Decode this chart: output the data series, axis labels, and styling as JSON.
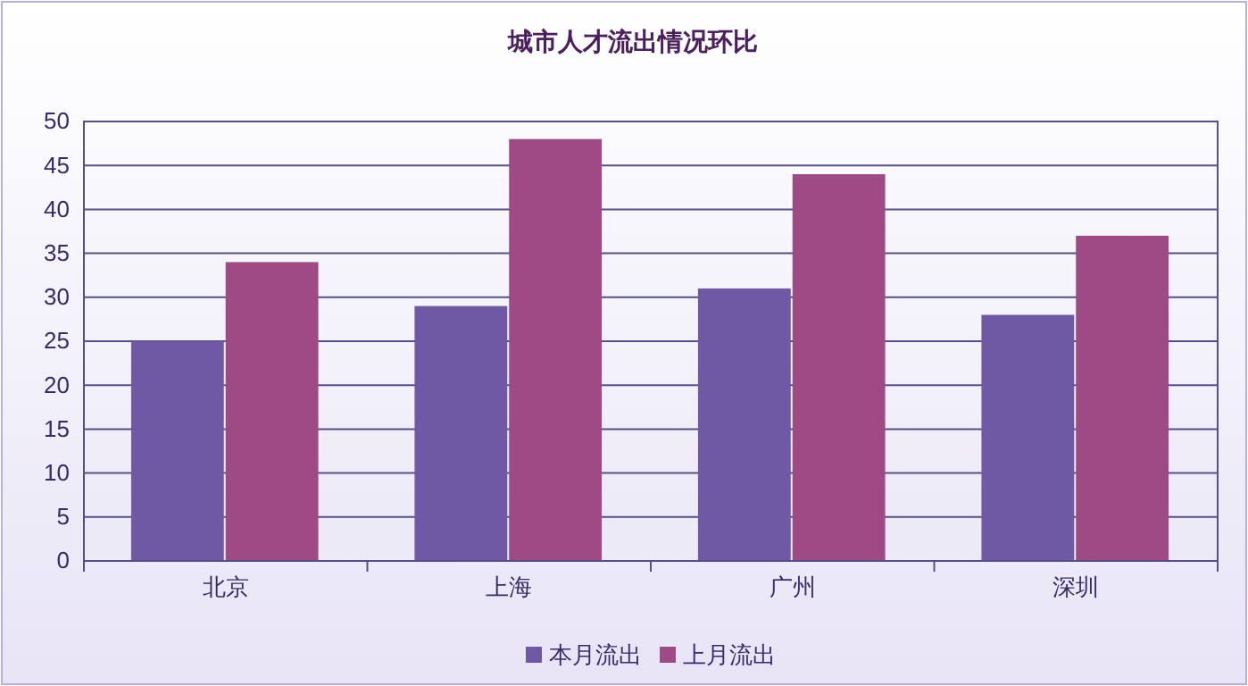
{
  "chart_data": {
    "type": "bar",
    "title": "城市人才流出情况环比",
    "categories": [
      "北京",
      "上海",
      "广州",
      "深圳"
    ],
    "series": [
      {
        "name": "本月流出",
        "color": "#7059a4",
        "values": [
          25,
          29,
          31,
          28
        ]
      },
      {
        "name": "上月流出",
        "color": "#9e4a84",
        "values": [
          34,
          48,
          44,
          37
        ]
      }
    ],
    "ylim": [
      0,
      50
    ],
    "yticks": [
      0,
      5,
      10,
      15,
      20,
      25,
      30,
      35,
      40,
      45,
      50
    ],
    "grid": "y",
    "legend": "bottom"
  }
}
